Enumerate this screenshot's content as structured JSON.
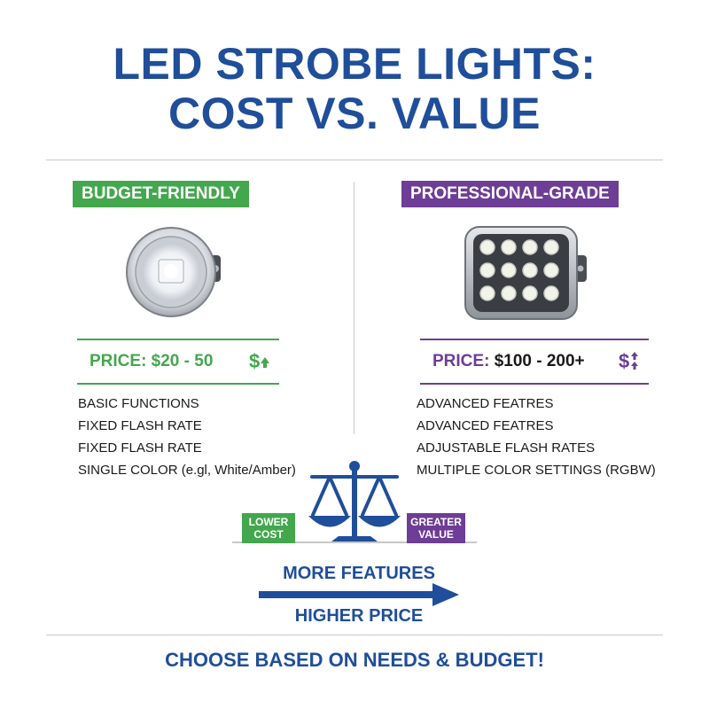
{
  "title": {
    "line1": "LED STROBE LIGHTS:",
    "line2": "COST VS. VALUE"
  },
  "budget": {
    "badge": "BUDGET-FRIENDLY",
    "price_label": "PRICE: $20 - 50",
    "price_icon": "$",
    "features": [
      "BASIC FUNCTIONS",
      "FIXED FLASH RATE",
      "FIXED FLASH RATE",
      "SINGLE COLOR (e.gl, White/Amber)"
    ],
    "color": "#43a74d"
  },
  "professional": {
    "badge": "PROFESSIONAL-GRADE",
    "price_label": "PRICE:",
    "price_value": "$100 - 200+",
    "price_icon": "$",
    "features": [
      "ADVANCED FEATRES",
      "ADVANCED FEATRES",
      "ADJUSTABLE FLASH RATES",
      "MULTIPLE COLOR SETTINGS (RGBW)"
    ],
    "color": "#6e3d96"
  },
  "scale": {
    "left_label": "LOWER COST",
    "right_label": "GREATER VALUE",
    "icon": "balance-scale-icon"
  },
  "arrow": {
    "top_label": "MORE FEATURES",
    "bottom_label": "HIGHER PRICE"
  },
  "footer": "CHOOSE BASED ON NEEDS & BUDGET!",
  "colors": {
    "navy": "#1f4e9a",
    "green": "#43a74d",
    "purple": "#6e3d96"
  }
}
